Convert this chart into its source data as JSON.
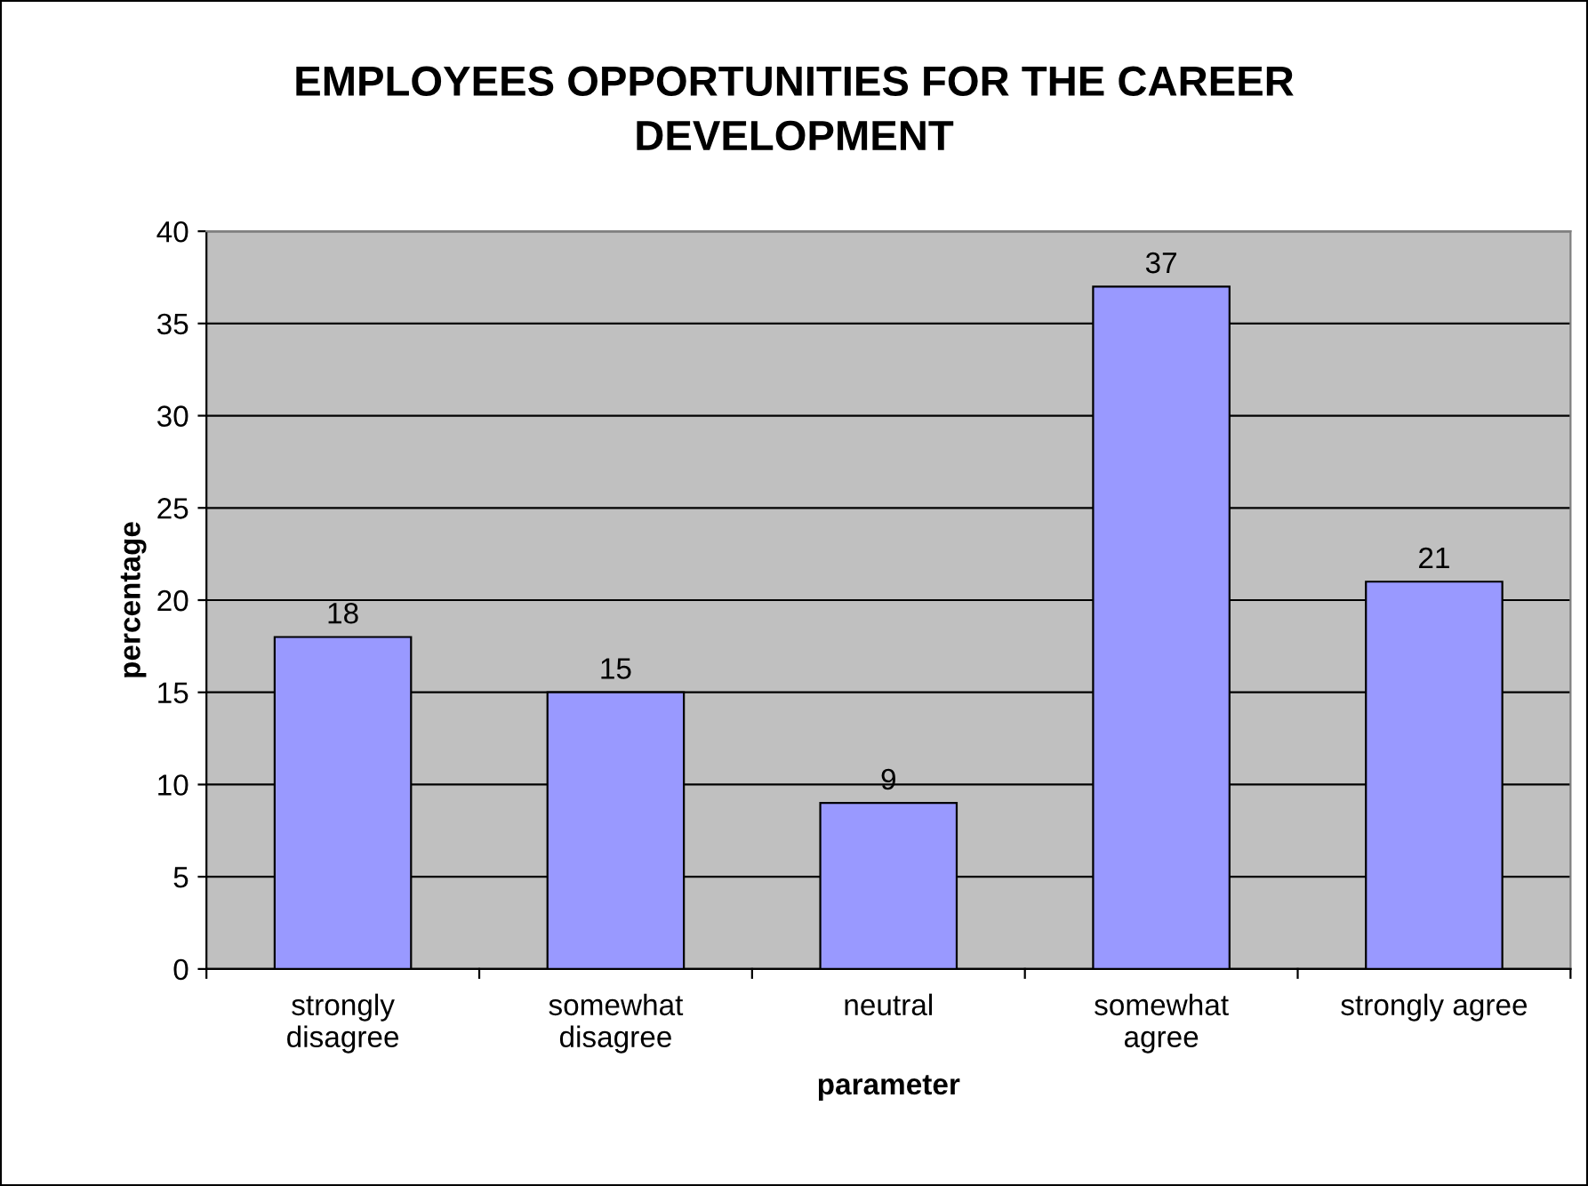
{
  "chart_data": {
    "type": "bar",
    "title": "EMPLOYEES OPPORTUNITIES FOR THE CAREER\nDEVELOPMENT",
    "xlabel": "parameter",
    "ylabel": "percentage",
    "categories": [
      "strongly\ndisagree",
      "somewhat\ndisagree",
      "neutral",
      "somewhat\nagree",
      "strongly agree"
    ],
    "values": [
      18,
      15,
      9,
      37,
      21
    ],
    "color": "#9999ff",
    "ylim": [
      0,
      40
    ],
    "yticks": [
      0,
      5,
      10,
      15,
      20,
      25,
      30,
      35,
      40
    ],
    "grid": "y",
    "data_labels": true,
    "legend": false
  }
}
